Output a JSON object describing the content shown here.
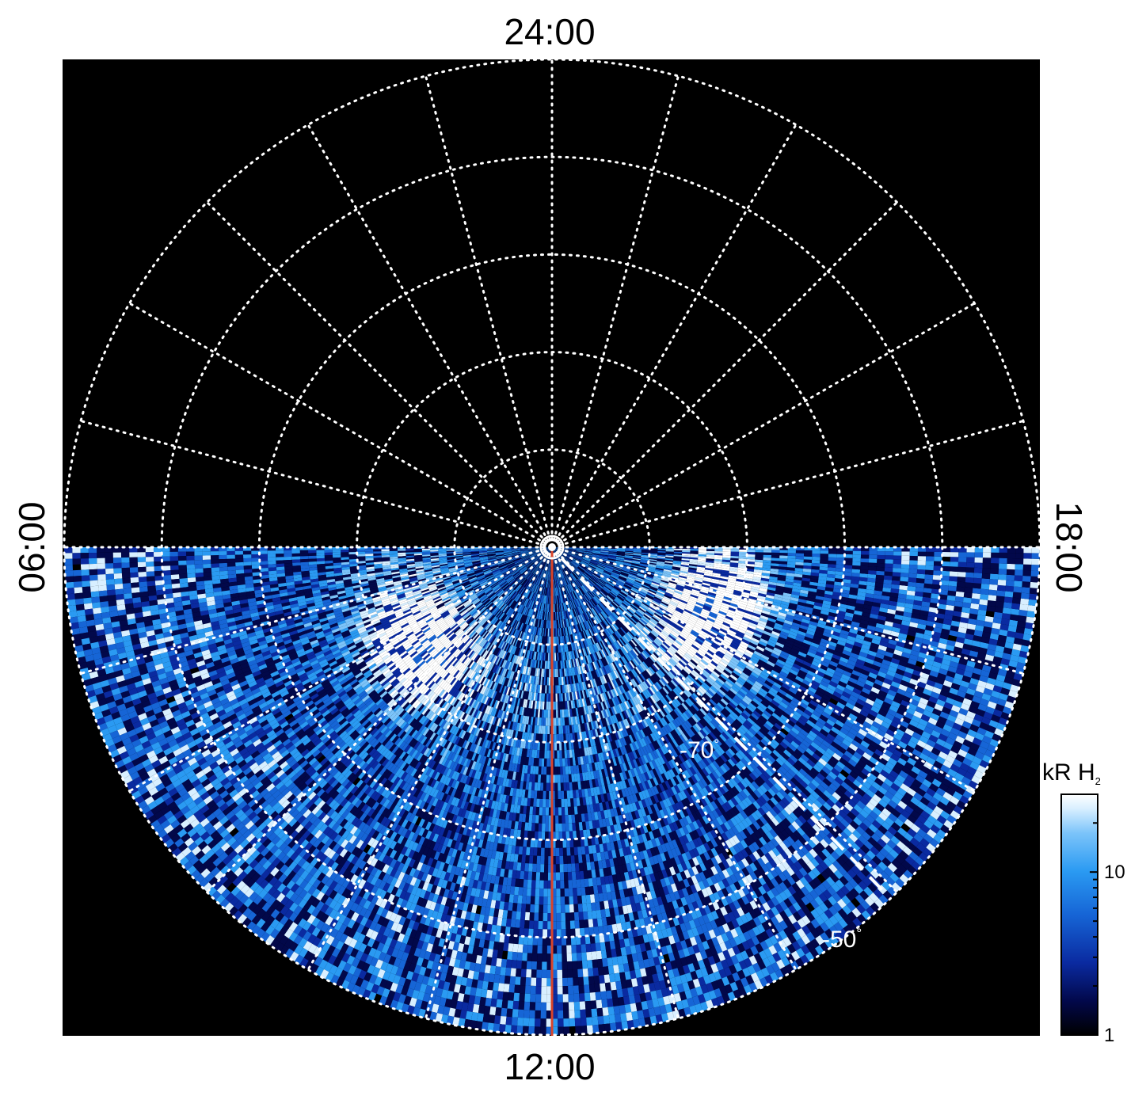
{
  "chart_data": {
    "type": "heatmap",
    "projection": "polar",
    "hemisphere": "south",
    "local_time_labels": {
      "top": "24:00",
      "bottom": "12:00",
      "left": "06:00",
      "right": "18:00"
    },
    "latitude_circles_deg": [
      -90,
      -80,
      -70,
      -60,
      -50,
      -40
    ],
    "latitude_labels": [
      {
        "value": "-70",
        "unit": "°"
      },
      {
        "value": "-50",
        "unit": "°"
      }
    ],
    "meridian_step_hours": 1,
    "grid": true,
    "grid_color": "#ffffff",
    "grid_style": "dotted",
    "reference_line": {
      "local_time": "12:00",
      "color": "#d9442a"
    },
    "dashed_line": {
      "color": "#ffffff",
      "style": "dashed"
    },
    "observed_region": "dayside (06:00–12:00–18:00)",
    "auroral_oval_features": [
      {
        "description": "bright patch dawn-side",
        "local_time_approx": "08:30",
        "colatitude_deg_approx": 17,
        "intensity_kR": 30
      },
      {
        "description": "bright patch dusk-side",
        "local_time_approx": "16:30",
        "colatitude_deg_approx": 18,
        "intensity_kR": 25
      }
    ],
    "colorbar": {
      "label_main": "kR H",
      "label_sub": "2",
      "scale": "log",
      "range": [
        1,
        30
      ],
      "ticks": [
        {
          "value": 1,
          "label": "1"
        },
        {
          "value": 10,
          "label": "10"
        }
      ],
      "colors": [
        "#000000",
        "#02084a",
        "#0a2aa0",
        "#1665d6",
        "#2a9af2",
        "#7cc4fa",
        "#d8efff",
        "#ffffff"
      ]
    }
  }
}
